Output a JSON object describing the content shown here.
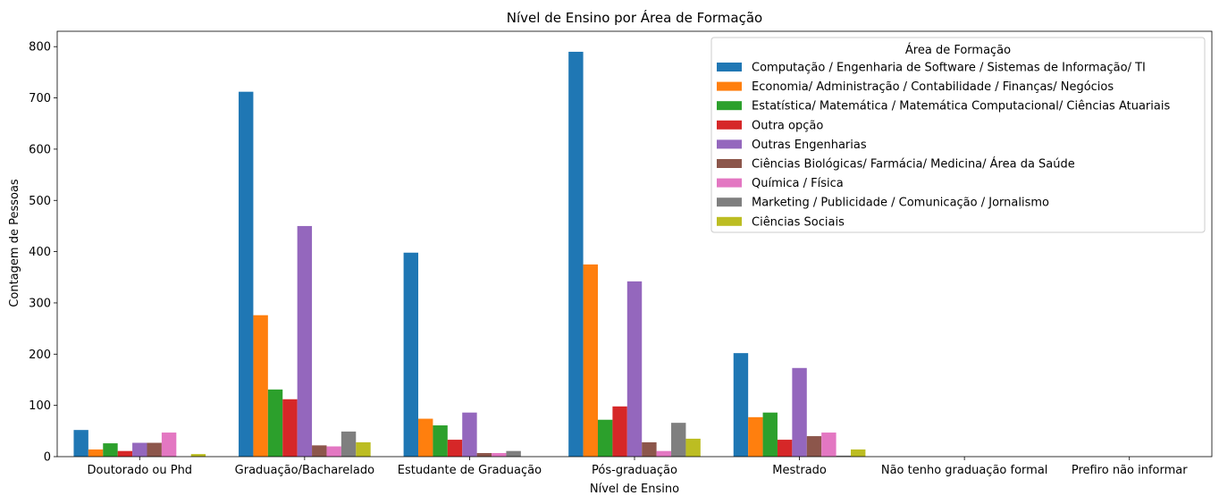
{
  "chart_data": {
    "type": "bar",
    "title": "Nível de Ensino por Área de Formação",
    "xlabel": "Nível de Ensino",
    "ylabel": "Contagem de Pessoas",
    "ylim": [
      0,
      830
    ],
    "yticks": [
      0,
      100,
      200,
      300,
      400,
      500,
      600,
      700,
      800
    ],
    "legend_title": "Área de Formação",
    "legend_position": "top-right",
    "grid": false,
    "categories": [
      "Doutorado ou Phd",
      "Graduação/Bacharelado",
      "Estudante de Graduação",
      "Pós-graduação",
      "Mestrado",
      "Não tenho graduação formal",
      "Prefiro não informar"
    ],
    "series": [
      {
        "name": "Computação / Engenharia de Software / Sistemas de Informação/ TI",
        "color": "#1f77b4",
        "values": [
          52,
          712,
          398,
          790,
          202,
          0,
          0
        ]
      },
      {
        "name": "Economia/ Administração / Contabilidade / Finanças/ Negócios",
        "color": "#ff7f0e",
        "values": [
          14,
          276,
          74,
          375,
          77,
          0,
          0
        ]
      },
      {
        "name": "Estatística/ Matemática / Matemática Computacional/ Ciências Atuariais",
        "color": "#2ca02c",
        "values": [
          26,
          131,
          61,
          72,
          86,
          0,
          0
        ]
      },
      {
        "name": "Outra opção",
        "color": "#d62728",
        "values": [
          11,
          112,
          33,
          98,
          33,
          0,
          0
        ]
      },
      {
        "name": "Outras Engenharias",
        "color": "#9467bd",
        "values": [
          27,
          450,
          86,
          342,
          173,
          0,
          0
        ]
      },
      {
        "name": "Ciências Biológicas/ Farmácia/ Medicina/ Área da Saúde",
        "color": "#8c564b",
        "values": [
          27,
          22,
          7,
          28,
          40,
          0,
          0
        ]
      },
      {
        "name": "Química / Física",
        "color": "#e377c2",
        "values": [
          47,
          20,
          7,
          11,
          47,
          0,
          0
        ]
      },
      {
        "name": "Marketing / Publicidade / Comunicação / Jornalismo",
        "color": "#7f7f7f",
        "values": [
          0,
          49,
          11,
          66,
          2,
          0,
          0
        ]
      },
      {
        "name": "Ciências Sociais",
        "color": "#bcbd22",
        "values": [
          5,
          28,
          0,
          35,
          14,
          0,
          0
        ]
      }
    ]
  }
}
